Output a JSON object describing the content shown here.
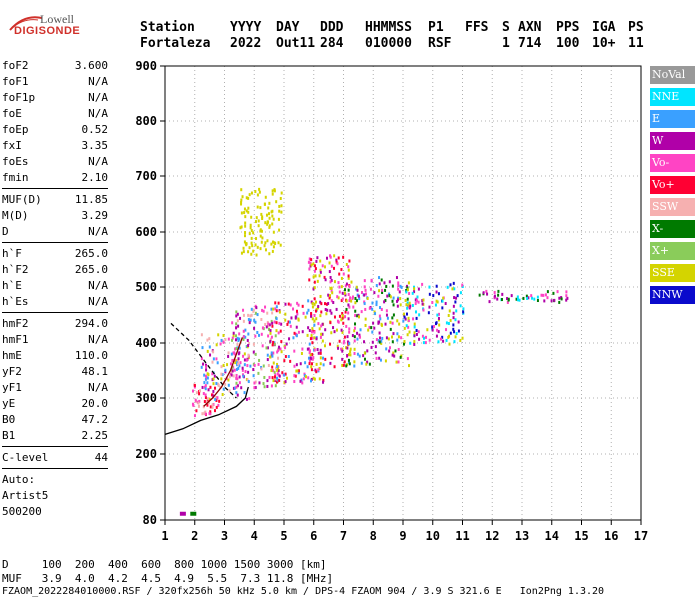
{
  "logo": {
    "top": "Lowell",
    "bottom": "DIGISONDE"
  },
  "header": {
    "row1": [
      "Station",
      "YYYY",
      "DAY",
      "DDD",
      "HHMMSS",
      "P1",
      "FFS",
      "S",
      "AXN",
      "PPS",
      "IGA",
      "PS"
    ],
    "row2": [
      "Fortaleza",
      "2022",
      "Out11",
      "284",
      "010000",
      "RSF",
      "1",
      "714",
      "100",
      "10+",
      "11"
    ]
  },
  "params": {
    "g1": [
      [
        "foF2",
        "3.600"
      ],
      [
        "foF1",
        "N/A"
      ],
      [
        "foF1p",
        "N/A"
      ],
      [
        "foE",
        "N/A"
      ],
      [
        "foEp",
        "0.52"
      ],
      [
        "fxI",
        "3.35"
      ],
      [
        "foEs",
        "N/A"
      ],
      [
        "fmin",
        "2.10"
      ]
    ],
    "g2": [
      [
        "MUF(D)",
        "11.85"
      ],
      [
        "M(D)",
        "3.29"
      ],
      [
        "D",
        "N/A"
      ]
    ],
    "g3": [
      [
        "h`F",
        "265.0"
      ],
      [
        "h`F2",
        "265.0"
      ],
      [
        "h`E",
        "N/A"
      ],
      [
        "h`Es",
        "N/A"
      ]
    ],
    "g4": [
      [
        "hmF2",
        "294.0"
      ],
      [
        "hmF1",
        "N/A"
      ],
      [
        "hmE",
        "110.0"
      ],
      [
        "yF2",
        "48.1"
      ],
      [
        "yF1",
        "N/A"
      ],
      [
        "yE",
        "20.0"
      ],
      [
        "B0",
        "47.2"
      ],
      [
        "B1",
        "2.25"
      ]
    ],
    "g5": [
      [
        "C-level",
        "44"
      ]
    ],
    "auto": [
      "Auto:",
      "Artist5",
      "500200"
    ]
  },
  "footer": {
    "d_row": "D     100  200  400  600  800 1000 1500 3000 [km]",
    "muf_row": "MUF   3.9  4.0  4.2  4.5  4.9  5.5  7.3 11.8 [MHz]",
    "file_row": "FZAOM_2022284010000.RSF / 320fx256h 50 kHz 5.0 km / DPS-4 FZAOM 904 / 3.9 S 321.6 E   Ion2Png 1.3.20"
  },
  "legend": [
    {
      "label": "NoVal",
      "color": "#999999"
    },
    {
      "label": "NNE",
      "color": "#00e5ff"
    },
    {
      "label": "E",
      "color": "#3aa0ff"
    },
    {
      "label": "W",
      "color": "#b000a8"
    },
    {
      "label": "Vo-",
      "color": "#ff44c4"
    },
    {
      "label": "Vo+",
      "color": "#ff0033"
    },
    {
      "label": "SSW",
      "color": "#f6b0b0"
    },
    {
      "label": "X-",
      "color": "#007a00"
    },
    {
      "label": "X+",
      "color": "#8acc5a"
    },
    {
      "label": "SSE",
      "color": "#d4d400"
    },
    {
      "label": "NNW",
      "color": "#0a0acc"
    }
  ],
  "chart_data": {
    "type": "scatter",
    "title": "",
    "xlabel": "",
    "ylabel": "",
    "xlim": [
      1,
      17
    ],
    "ylim": [
      80,
      900
    ],
    "x_ticks": [
      1,
      2,
      3,
      4,
      5,
      6,
      7,
      8,
      9,
      10,
      11,
      12,
      13,
      14,
      15,
      16,
      17
    ],
    "y_ticks": [
      80,
      200,
      300,
      400,
      500,
      600,
      700,
      800,
      900
    ],
    "grid": true,
    "clusters": [
      {
        "x": [
          1.9,
          2.8
        ],
        "y": [
          270,
          330
        ],
        "colors": [
          "#ff0033",
          "#ff44c4",
          "#f6b0b0"
        ]
      },
      {
        "x": [
          2.2,
          3.8
        ],
        "y": [
          300,
          420
        ],
        "colors": [
          "#ff44c4",
          "#b000a8",
          "#3aa0ff",
          "#f6b0b0",
          "#d4d400"
        ]
      },
      {
        "x": [
          3.2,
          4.8
        ],
        "y": [
          320,
          470
        ],
        "colors": [
          "#ff44c4",
          "#b000a8",
          "#3aa0ff",
          "#f6b0b0",
          "#8acc5a"
        ]
      },
      {
        "x": [
          3.5,
          4.9
        ],
        "y": [
          560,
          680
        ],
        "colors": [
          "#d4d400"
        ]
      },
      {
        "x": [
          4.5,
          6.3
        ],
        "y": [
          330,
          480
        ],
        "colors": [
          "#ff44c4",
          "#b000a8",
          "#3aa0ff",
          "#d4d400",
          "#ff0033"
        ]
      },
      {
        "x": [
          5.8,
          7.2
        ],
        "y": [
          350,
          560
        ],
        "colors": [
          "#ff0033",
          "#ff44c4",
          "#d4d400",
          "#b000a8"
        ]
      },
      {
        "x": [
          7.0,
          9.2
        ],
        "y": [
          360,
          520
        ],
        "colors": [
          "#d4d400",
          "#ff44c4",
          "#3aa0ff",
          "#b000a8",
          "#007a00"
        ]
      },
      {
        "x": [
          9.0,
          11.0
        ],
        "y": [
          400,
          510
        ],
        "colors": [
          "#b000a8",
          "#ff44c4",
          "#0a0acc",
          "#d4d400",
          "#00e5ff"
        ]
      },
      {
        "x": [
          11.5,
          14.5
        ],
        "y": [
          475,
          495
        ],
        "colors": [
          "#00e5ff",
          "#007a00",
          "#ff44c4",
          "#b000a8"
        ]
      }
    ],
    "curves": [
      {
        "name": "o-trace",
        "color": "#000000",
        "x": [
          1.0,
          1.6,
          2.2,
          2.8,
          3.4,
          3.7,
          3.8
        ],
        "y": [
          235,
          245,
          260,
          270,
          285,
          300,
          320
        ]
      },
      {
        "name": "profile",
        "color": "#8b0000",
        "x": [
          2.3,
          2.6,
          2.9,
          3.2,
          3.4,
          3.6
        ],
        "y": [
          285,
          300,
          320,
          350,
          380,
          410
        ]
      },
      {
        "name": "dashed",
        "color": "#000000",
        "x": [
          1.2,
          1.8,
          2.5,
          3.0,
          3.4
        ],
        "y": [
          435,
          405,
          355,
          320,
          300
        ]
      }
    ]
  }
}
